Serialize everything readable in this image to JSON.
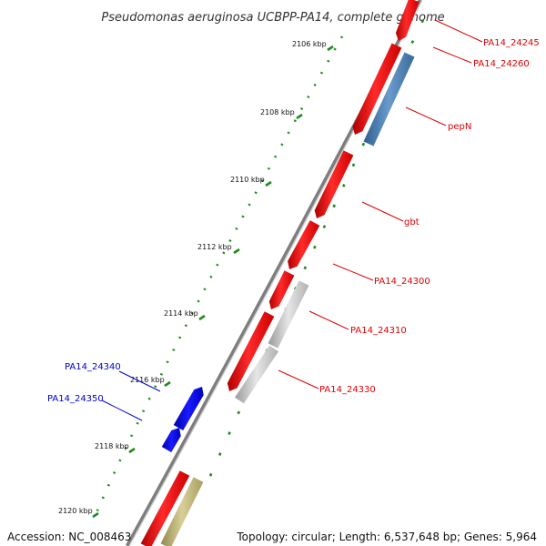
{
  "title": "Pseudomonas aeruginosa UCBPP-PA14, complete genome",
  "footer": {
    "accession": "Accession: NC_008463",
    "summary": "Topology: circular; Length: 6,537,648 bp; Genes: 5,964"
  },
  "colors": {
    "backbone": "#8a8a8a",
    "gene_red": "#ff0000",
    "gene_blue": "#0000ee",
    "gene_steel": "#4a7fb5",
    "gene_grey": "#c8c8c8",
    "gene_khaki": "#c2b77e",
    "tick_green": "#1f8a1f",
    "label_red": "#dd0000",
    "label_blue": "#0000cc"
  },
  "scale_ticks": [
    "2106 kbp",
    "2108 kbp",
    "2110 kbp",
    "2112 kbp",
    "2114 kbp",
    "2116 kbp",
    "2118 kbp",
    "2120 kbp"
  ],
  "gene_labels": {
    "right": [
      "PA14_24245",
      "PA14_24260",
      "pepN",
      "gbt",
      "PA14_24300",
      "PA14_24310",
      "PA14_24330"
    ],
    "left": [
      "PA14_24340",
      "PA14_24350"
    ]
  }
}
